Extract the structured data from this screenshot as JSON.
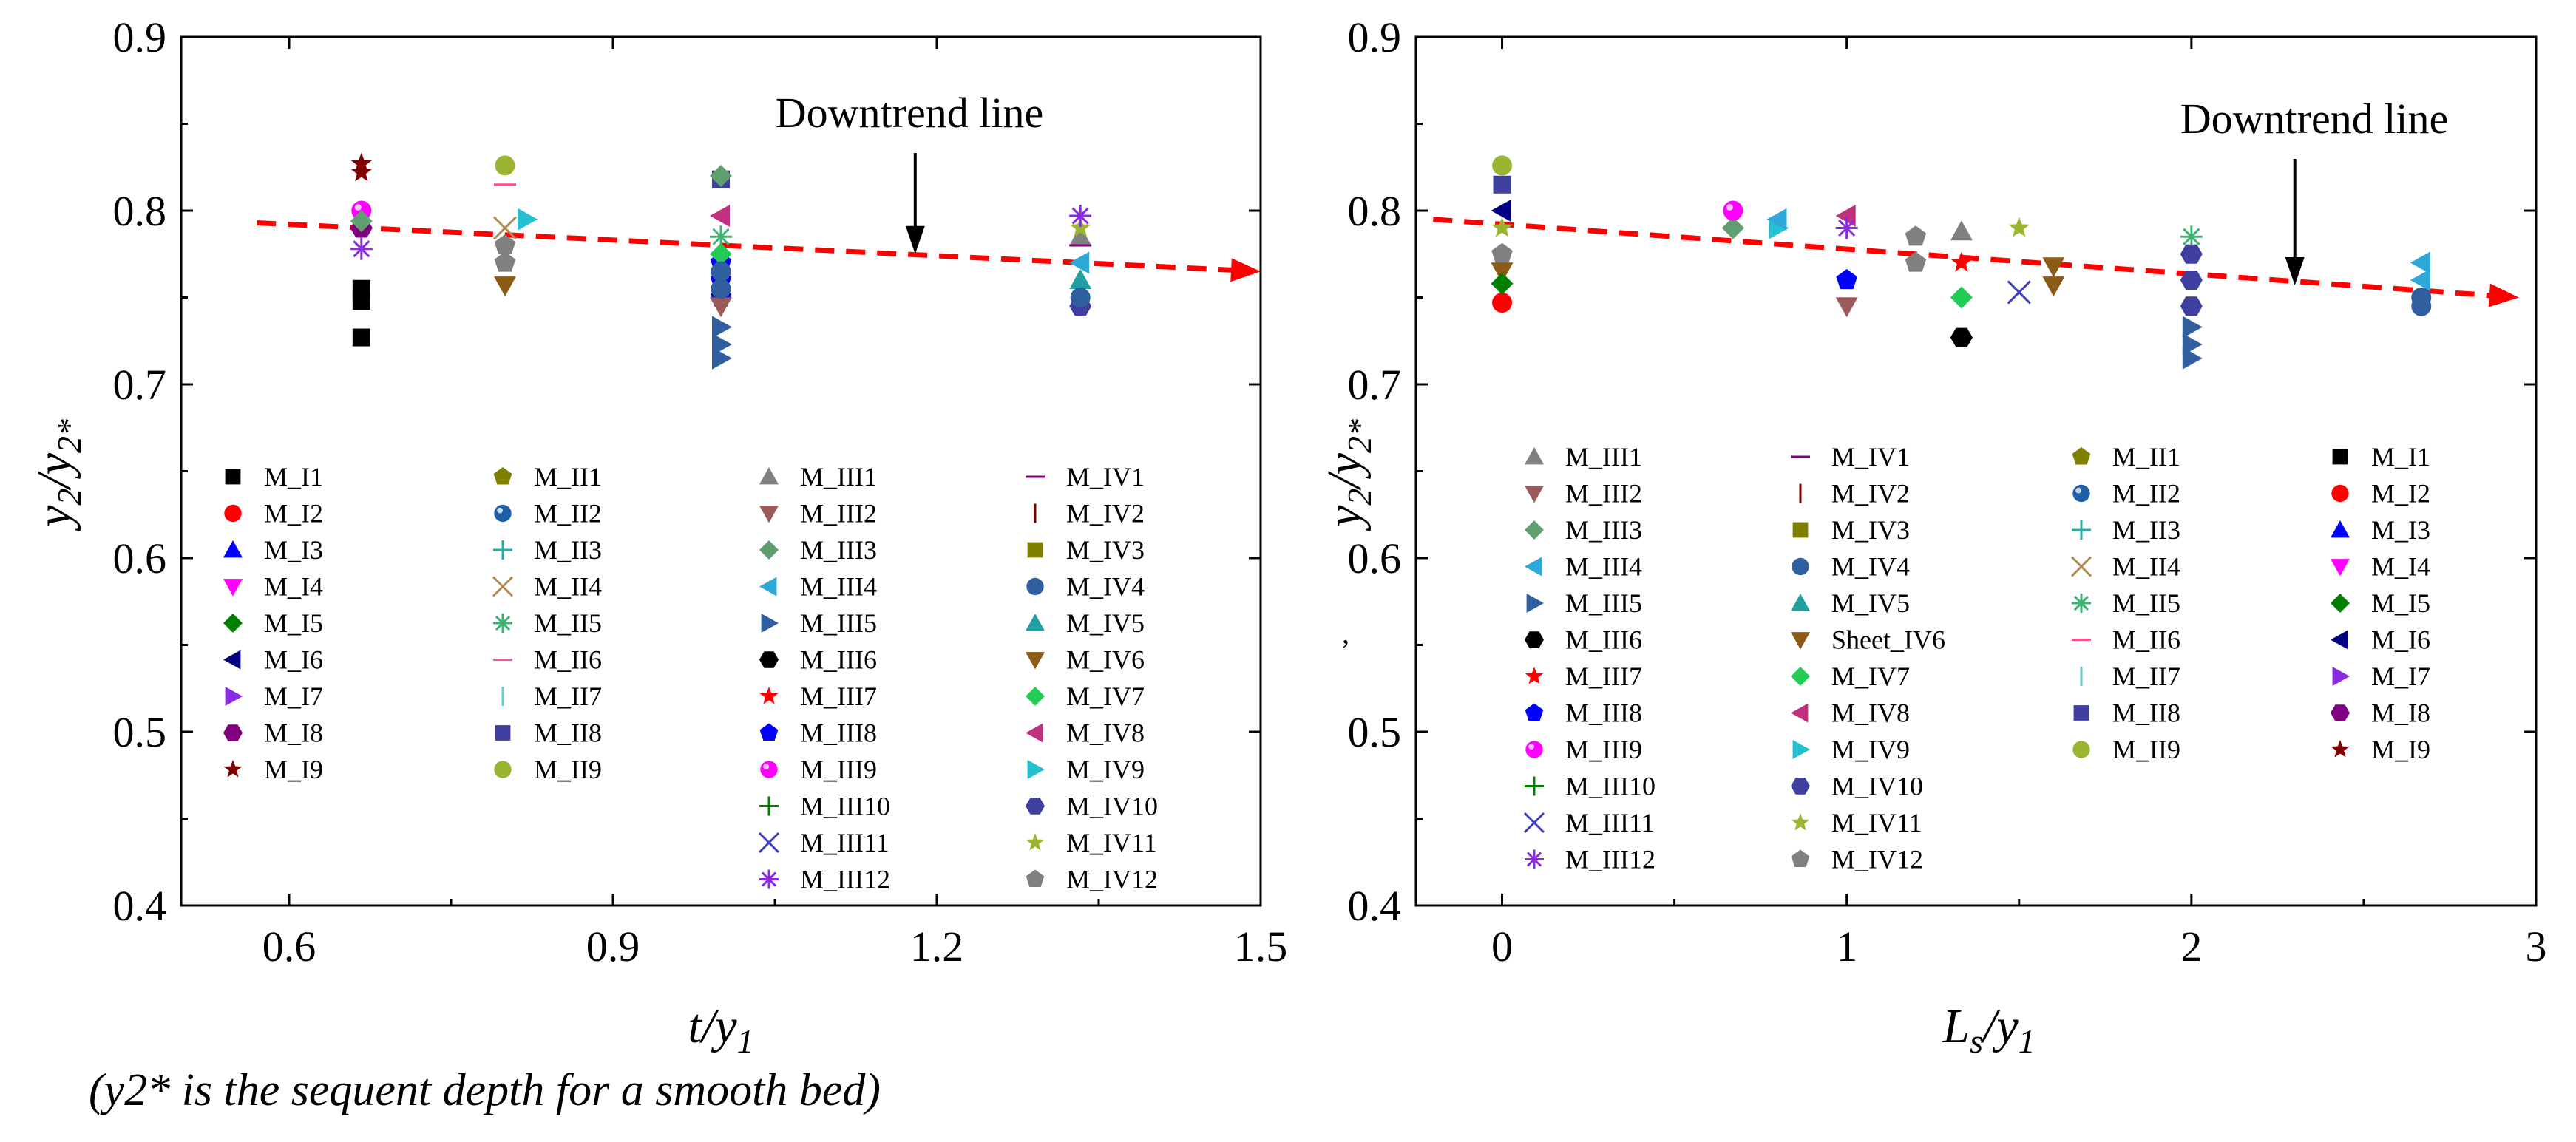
{
  "chart_data": [
    {
      "type": "scatter",
      "id": "left",
      "title": "",
      "xlabel": {
        "main": "t/y",
        "sub": "1"
      },
      "ylabel": {
        "main": "y",
        "sub1": "2",
        "sep": "/y",
        "sub2": "2*"
      },
      "xlim": [
        0.5,
        1.5
      ],
      "ylim": [
        0.4,
        0.9
      ],
      "xticks": [
        0.6,
        0.9,
        1.2,
        1.5
      ],
      "xtick_labels": [
        "0.6",
        "0.9",
        "1.2",
        "1.5"
      ],
      "yticks": [
        0.4,
        0.5,
        0.6,
        0.7,
        0.8,
        0.9
      ],
      "ytick_labels": [
        "0.4",
        "0.5",
        "0.6",
        "0.7",
        "0.8",
        "0.9"
      ],
      "annotation": {
        "text": "Downtrend line",
        "arrow_to": [
          1.18,
          0.775
        ]
      },
      "trend_line": {
        "x": [
          0.57,
          1.5
        ],
        "y": [
          0.793,
          0.765
        ],
        "color": "#ff0000",
        "style": "dashed"
      },
      "legend_columns": [
        [
          "M_I1",
          "M_I2",
          "M_I3",
          "M_I4",
          "M_I5",
          "M_I6",
          "M_I7",
          "M_I8",
          "M_I9"
        ],
        [
          "M_II1",
          "M_II2",
          "M_II3",
          "M_II4",
          "M_II5",
          "M_II6",
          "M_II7",
          "M_II8",
          "M_II9"
        ],
        [
          "M_III1",
          "M_III2",
          "M_III3",
          "M_III4",
          "M_III5",
          "M_III6",
          "M_III7",
          "M_III8",
          "M_III9",
          "M_III10",
          "M_III11",
          "M_III12"
        ],
        [
          "M_IV1",
          "M_IV2",
          "M_IV3",
          "M_IV4",
          "M_IV5",
          "M_IV6",
          "M_IV7",
          "M_IV8",
          "M_IV9",
          "M_IV10",
          "M_IV11",
          "M_IV12"
        ]
      ],
      "series_data": {
        "M_I1": [
          [
            0.667,
            0.727
          ],
          [
            0.667,
            0.748
          ],
          [
            0.667,
            0.755
          ]
        ],
        "M_I8": [
          [
            0.667,
            0.79
          ]
        ],
        "M_I9": [
          [
            0.667,
            0.822
          ],
          [
            0.667,
            0.827
          ]
        ],
        "M_III9": [
          [
            0.667,
            0.8
          ]
        ],
        "M_III12": [
          [
            0.667,
            0.778
          ]
        ],
        "M_III3": [
          [
            0.667,
            0.794
          ]
        ],
        "M_II9": [
          [
            0.8,
            0.826
          ]
        ],
        "M_II6": [
          [
            0.8,
            0.815
          ]
        ],
        "M_IV6": [
          [
            0.8,
            0.757
          ]
        ],
        "M_IV12": [
          [
            0.8,
            0.78
          ],
          [
            0.8,
            0.77
          ]
        ],
        "M_II4": [
          [
            0.8,
            0.79
          ]
        ],
        "M_IV9": [
          [
            0.82,
            0.795
          ]
        ],
        "M_II8": [
          [
            1.0,
            0.818
          ]
        ],
        "M_III3_b": [
          [
            1.0,
            0.82
          ]
        ],
        "M_III5": [
          [
            1.0,
            0.715
          ],
          [
            1.0,
            0.723
          ],
          [
            1.0,
            0.733
          ]
        ],
        "M_III8": [
          [
            1.0,
            0.76
          ],
          [
            1.0,
            0.77
          ],
          [
            1.0,
            0.75
          ]
        ],
        "M_IV8": [
          [
            1.0,
            0.797
          ]
        ],
        "M_II5": [
          [
            1.0,
            0.785
          ]
        ],
        "M_IV7": [
          [
            1.0,
            0.775
          ]
        ],
        "M_III2": [
          [
            1.0,
            0.745
          ]
        ],
        "M_IV4": [
          [
            1.0,
            0.765
          ],
          [
            1.0,
            0.755
          ]
        ],
        "M_III1": [
          [
            1.333,
            0.785
          ]
        ],
        "M_III4": [
          [
            1.333,
            0.77
          ]
        ],
        "M_IV10": [
          [
            1.333,
            0.745
          ]
        ],
        "M_IV11": [
          [
            1.333,
            0.79
          ]
        ],
        "M_III12_b": [
          [
            1.333,
            0.797
          ]
        ],
        "M_IV5": [
          [
            1.333,
            0.76
          ]
        ],
        "M_IV1": [
          [
            1.333,
            0.78
          ]
        ],
        "M_IV4_b": [
          [
            1.333,
            0.75
          ]
        ]
      }
    },
    {
      "type": "scatter",
      "id": "right",
      "title": "",
      "xlabel": {
        "main": "L",
        "sub_s": "s",
        "sep": "/y",
        "sub": "1"
      },
      "ylabel": {
        "main": "y",
        "sub1": "2",
        "sep": "/y",
        "sub2": "2*"
      },
      "xlim": [
        -0.25,
        3.0
      ],
      "ylim": [
        0.4,
        0.9
      ],
      "xticks": [
        0,
        1,
        2,
        3
      ],
      "xtick_labels": [
        "0",
        "1",
        "2",
        "3"
      ],
      "yticks": [
        0.4,
        0.5,
        0.6,
        0.7,
        0.8,
        0.9
      ],
      "ytick_labels": [
        "0.4",
        "0.5",
        "0.6",
        "0.7",
        "0.8",
        "0.9"
      ],
      "annotation": {
        "text": "Downtrend line",
        "arrow_to": [
          2.3,
          0.757
        ]
      },
      "trend_line": {
        "x": [
          -0.2,
          2.95
        ],
        "y": [
          0.795,
          0.75
        ],
        "color": "#ff0000",
        "style": "dashed"
      },
      "stray_mark": ",",
      "legend_columns": [
        [
          "M_III1",
          "M_III2",
          "M_III3",
          "M_III4",
          "M_III5",
          "M_III6",
          "M_III7",
          "M_III8",
          "M_III9",
          "M_III10",
          "M_III11",
          "M_III12"
        ],
        [
          "M_IV1",
          "M_IV2",
          "M_IV3",
          "M_IV4",
          "M_IV5",
          "Sheet_IV6",
          "M_IV7",
          "M_IV8",
          "M_IV9",
          "M_IV10",
          "M_IV11",
          "M_IV12"
        ],
        [
          "M_II1",
          "M_II2",
          "M_II3",
          "M_II4",
          "M_II5",
          "M_II6",
          "M_II7",
          "M_II8",
          "M_II9"
        ],
        [
          "M_I1",
          "M_I2",
          "M_I3",
          "M_I4",
          "M_I5",
          "M_I6",
          "M_I7",
          "M_I8",
          "M_I9"
        ]
      ],
      "series_data": {
        "M_II9": [
          [
            0.0,
            0.826
          ]
        ],
        "M_II8": [
          [
            0.0,
            0.815
          ]
        ],
        "M_I6": [
          [
            0.0,
            0.8
          ]
        ],
        "M_IV11": [
          [
            0.0,
            0.79
          ]
        ],
        "M_IV12": [
          [
            0.0,
            0.775
          ]
        ],
        "M_IV6": [
          [
            0.0,
            0.765
          ]
        ],
        "M_I2": [
          [
            0.0,
            0.747
          ]
        ],
        "M_I5": [
          [
            0.0,
            0.758
          ]
        ],
        "M_III3": [
          [
            0.67,
            0.79
          ]
        ],
        "M_III9": [
          [
            0.67,
            0.8
          ]
        ],
        "M_IV9": [
          [
            0.8,
            0.79
          ]
        ],
        "M_III4": [
          [
            0.8,
            0.795
          ]
        ],
        "M_IV8": [
          [
            1.0,
            0.797
          ]
        ],
        "M_III12": [
          [
            1.0,
            0.79
          ]
        ],
        "M_III2": [
          [
            1.0,
            0.745
          ]
        ],
        "M_III8": [
          [
            1.0,
            0.76
          ]
        ],
        "M_IV12_b": [
          [
            1.2,
            0.785
          ],
          [
            1.2,
            0.77
          ]
        ],
        "M_III1": [
          [
            1.333,
            0.788
          ]
        ],
        "M_III7": [
          [
            1.333,
            0.77
          ]
        ],
        "M_IV7": [
          [
            1.333,
            0.75
          ]
        ],
        "M_III6": [
          [
            1.333,
            0.727
          ]
        ],
        "M_III11": [
          [
            1.5,
            0.753
          ]
        ],
        "M_IV11_b": [
          [
            1.5,
            0.79
          ]
        ],
        "Sheet_IV6": [
          [
            1.6,
            0.757
          ],
          [
            1.6,
            0.768
          ]
        ],
        "M_III5": [
          [
            2.0,
            0.715
          ],
          [
            2.0,
            0.723
          ],
          [
            2.0,
            0.733
          ]
        ],
        "M_II5": [
          [
            2.0,
            0.785
          ]
        ],
        "M_IV10": [
          [
            2.0,
            0.745
          ],
          [
            2.0,
            0.76
          ],
          [
            2.0,
            0.775
          ]
        ],
        "M_III4_b": [
          [
            2.667,
            0.77
          ],
          [
            2.667,
            0.76
          ]
        ],
        "M_IV4": [
          [
            2.667,
            0.745
          ],
          [
            2.667,
            0.75
          ]
        ]
      }
    }
  ],
  "footnote": "(y2* is the sequent depth for a smooth bed)"
}
